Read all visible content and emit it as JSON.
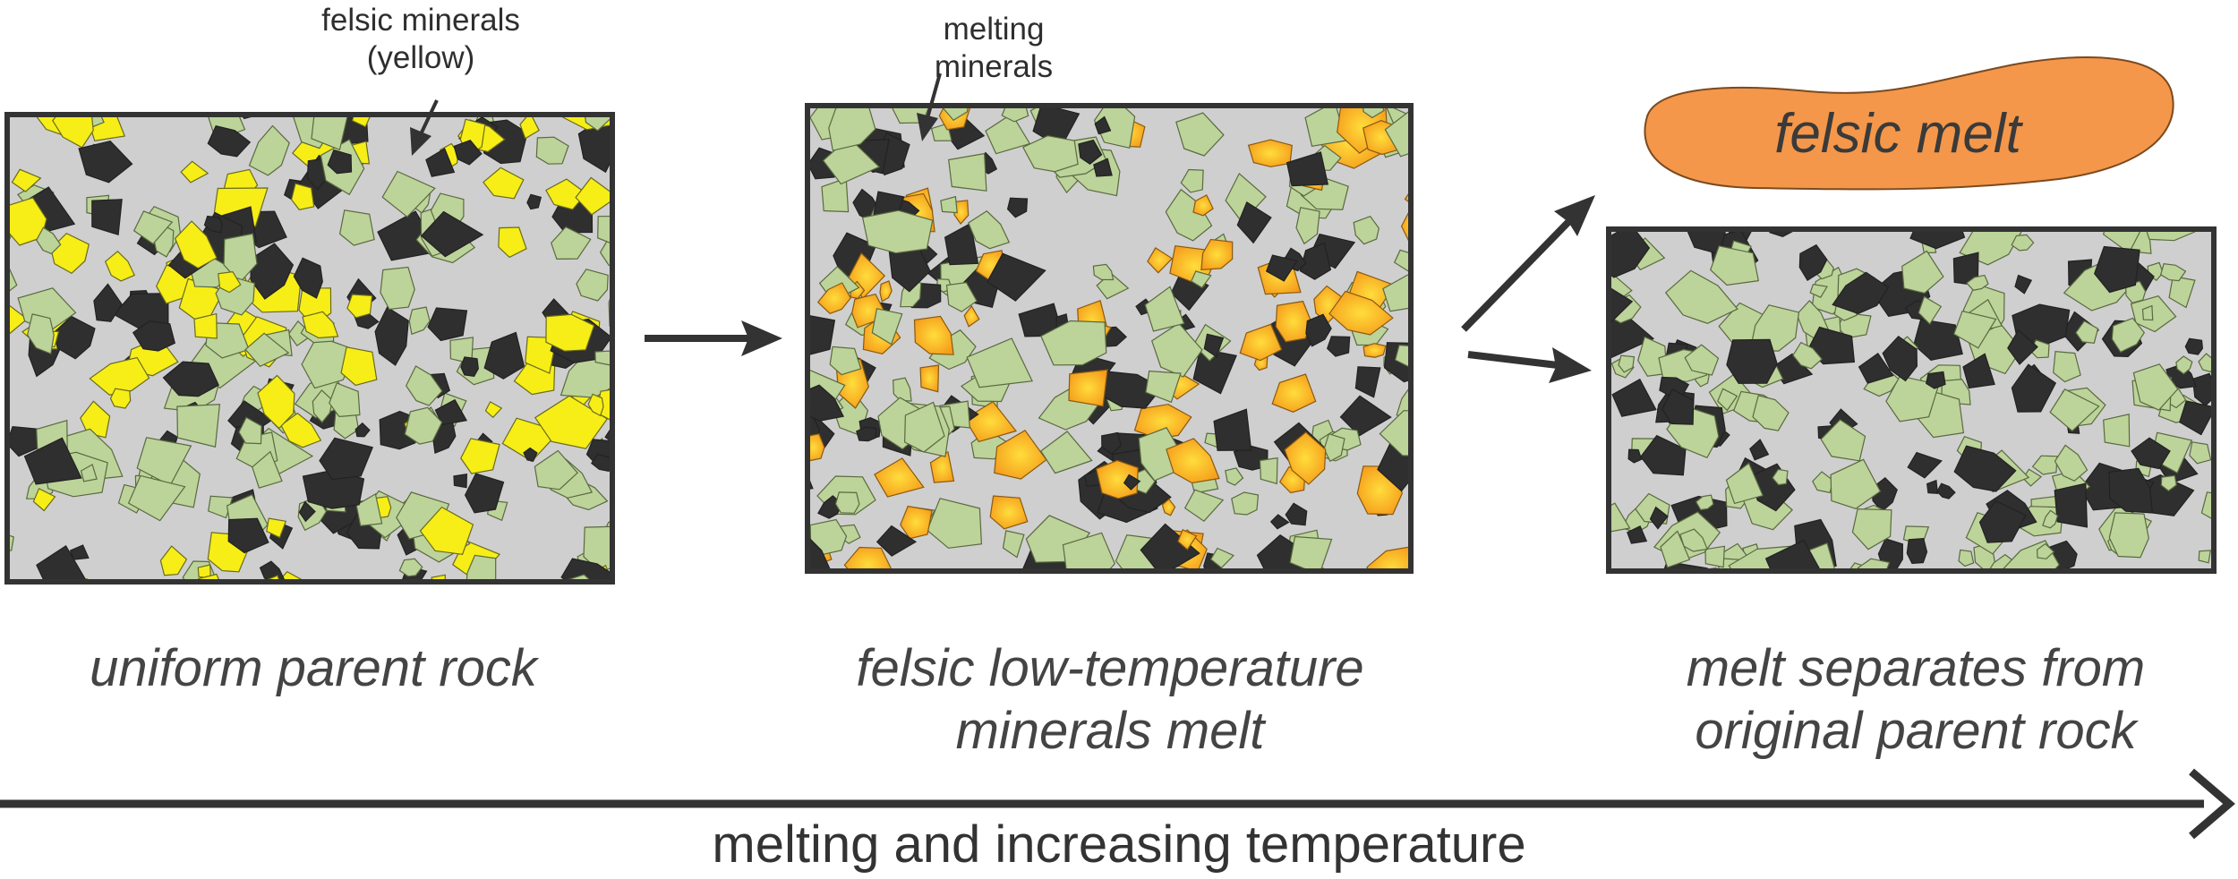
{
  "labels": {
    "felsic_minerals": "felsic minerals",
    "felsic_minerals_sub": "(yellow)",
    "melting_minerals_1": "melting",
    "melting_minerals_2": "minerals",
    "felsic_melt": "felsic melt"
  },
  "captions": {
    "panel1": "uniform parent rock",
    "panel2_line1": "felsic low-temperature",
    "panel2_line2": "minerals melt",
    "panel3_line1": "melt separates from",
    "panel3_line2": "original parent rock"
  },
  "axis": {
    "label": "melting and increasing temperature"
  },
  "colors": {
    "matrix": "#cfcfcf",
    "felsic": "#f6ee16",
    "melting": "#f7a21a",
    "melting_core": "#ffd23a",
    "green": "#bcd39a",
    "dark": "#2f2f2f",
    "melt_blob": "#f4974a",
    "frame": "#333333"
  }
}
